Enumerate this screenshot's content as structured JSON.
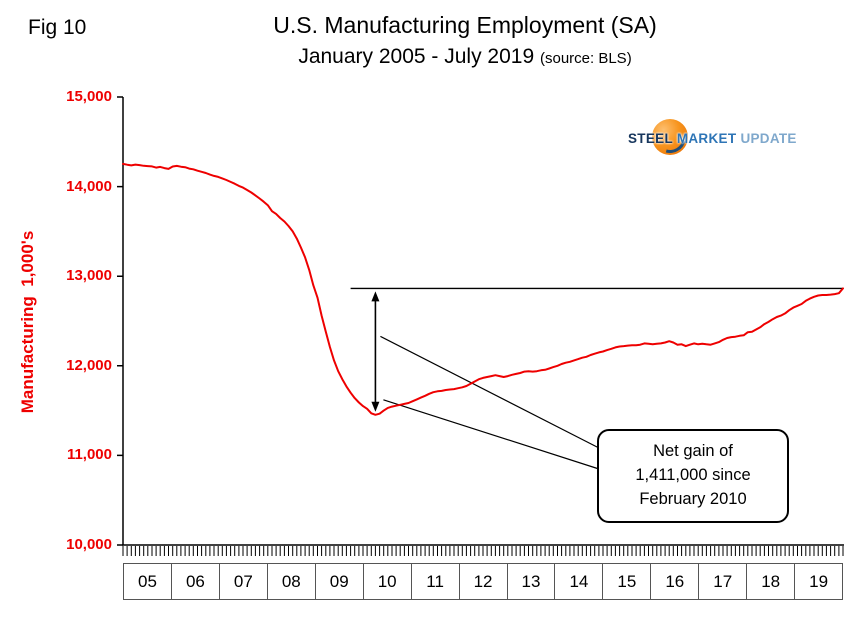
{
  "fig_label": "Fig 10",
  "title": {
    "line1": "U.S. Manufacturing Employment (SA)",
    "line2": "January 2005 - July 2019",
    "source": "(source: BLS)"
  },
  "logo": {
    "word1": "STEEL",
    "word2": "MARKET",
    "word3": "UPDATE"
  },
  "y_axis": {
    "label": "Manufacturing  1,000's",
    "ticks": [
      "15,000",
      "14,000",
      "13,000",
      "12,000",
      "11,000",
      "10,000"
    ]
  },
  "x_axis": {
    "years": [
      "05",
      "06",
      "07",
      "08",
      "09",
      "10",
      "11",
      "12",
      "13",
      "14",
      "15",
      "16",
      "17",
      "18",
      "19"
    ]
  },
  "annotation": {
    "line1": "Net gain of",
    "line2": "1,411,000 since",
    "line3": "February 2010"
  },
  "colors": {
    "series_line": "#ee0000",
    "axis_text": "#ee0000",
    "annotation_line": "#000000",
    "logo_orange": "#f7941d",
    "logo_blue_dark": "#17365d",
    "logo_blue": "#2e75b6",
    "logo_blue_light": "#7fa8cc"
  },
  "chart_data": {
    "type": "line",
    "title": "U.S. Manufacturing Employment (SA), January 2005 - July 2019",
    "source": "BLS",
    "unit": "thousands of employees, seasonally adjusted",
    "frequency": "monthly",
    "x_start": "2005-01",
    "x_end": "2019-07",
    "ylim": [
      10000,
      15000
    ],
    "y_tick_step": 1000,
    "grid": false,
    "legend": false,
    "series": [
      {
        "name": "Manufacturing employment (1,000s)",
        "color": "#ee0000",
        "values": [
          14253,
          14244,
          14237,
          14246,
          14240,
          14232,
          14229,
          14226,
          14212,
          14220,
          14206,
          14198,
          14224,
          14231,
          14222,
          14216,
          14201,
          14193,
          14178,
          14165,
          14152,
          14134,
          14119,
          14108,
          14092,
          14074,
          14053,
          14032,
          14008,
          13989,
          13962,
          13934,
          13902,
          13867,
          13831,
          13792,
          13725,
          13695,
          13650,
          13610,
          13560,
          13500,
          13420,
          13320,
          13210,
          13070,
          12900,
          12760,
          12560,
          12380,
          12210,
          12060,
          11940,
          11850,
          11770,
          11700,
          11640,
          11590,
          11550,
          11520,
          11470,
          11453,
          11465,
          11500,
          11530,
          11545,
          11555,
          11565,
          11575,
          11585,
          11605,
          11625,
          11645,
          11665,
          11688,
          11705,
          11715,
          11720,
          11730,
          11735,
          11740,
          11750,
          11760,
          11775,
          11800,
          11825,
          11850,
          11865,
          11875,
          11885,
          11895,
          11885,
          11875,
          11885,
          11900,
          11910,
          11920,
          11935,
          11940,
          11935,
          11940,
          11950,
          11955,
          11970,
          11985,
          12000,
          12020,
          12035,
          12045,
          12060,
          12075,
          12090,
          12100,
          12120,
          12135,
          12150,
          12160,
          12175,
          12190,
          12205,
          12215,
          12220,
          12225,
          12230,
          12230,
          12235,
          12250,
          12245,
          12240,
          12245,
          12250,
          12260,
          12275,
          12260,
          12235,
          12240,
          12220,
          12235,
          12250,
          12240,
          12245,
          12240,
          12235,
          12250,
          12265,
          12290,
          12310,
          12320,
          12325,
          12335,
          12340,
          12375,
          12380,
          12405,
          12430,
          12465,
          12490,
          12520,
          12545,
          12560,
          12585,
          12620,
          12650,
          12670,
          12690,
          12725,
          12750,
          12770,
          12785,
          12790,
          12790,
          12795,
          12800,
          12810,
          12864
        ]
      }
    ],
    "annotations": {
      "reference_line": {
        "type": "horizontal",
        "value": 12864,
        "x_from": "2009-08",
        "x_to": "2019-07"
      },
      "net_gain_arrow": {
        "x": "2010-02",
        "from_value": 12864,
        "to_value": 11453,
        "style": "double-headed"
      },
      "callout": {
        "text": "Net gain of 1,411,000 since February 2010",
        "points_to": "gap between Feb 2010 trough and Jul 2019 level"
      }
    },
    "key_points": {
      "start": {
        "date": "2005-01",
        "value": 14253
      },
      "trough": {
        "date": "2010-02",
        "value": 11453
      },
      "latest": {
        "date": "2019-07",
        "value": 12864
      },
      "net_gain_since_trough_thousands": 1411
    }
  }
}
